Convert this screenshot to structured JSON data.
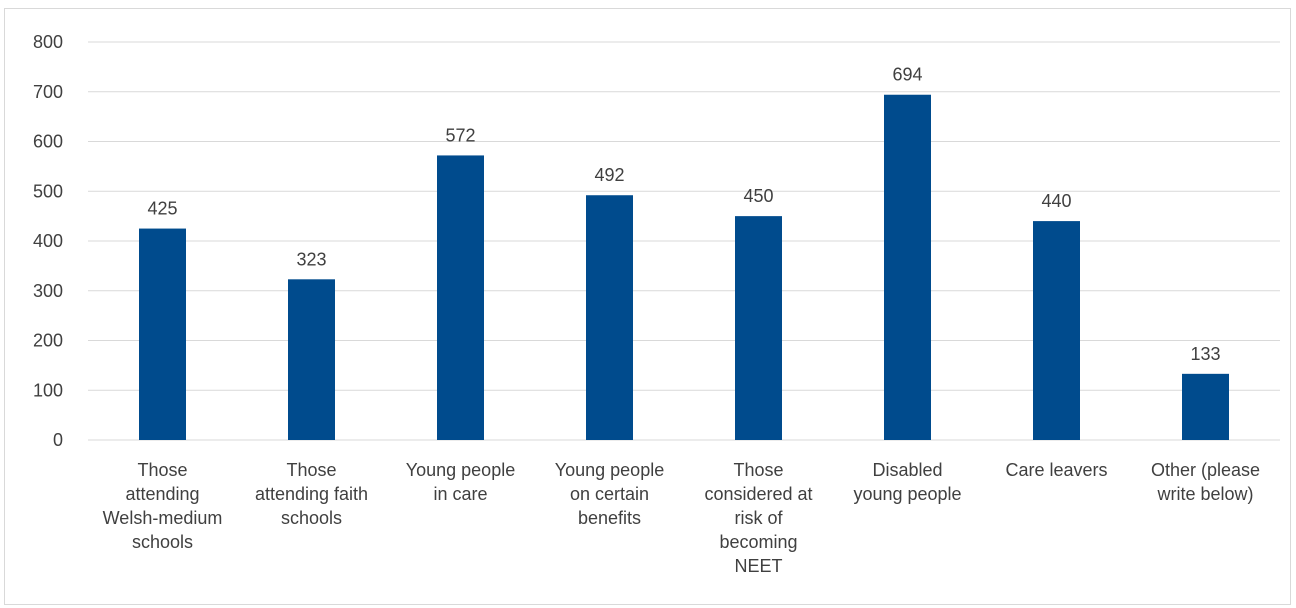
{
  "chart_data": {
    "type": "bar",
    "categories": [
      [
        "Those",
        "attending",
        "Welsh-medium",
        "schools"
      ],
      [
        "Those",
        "attending faith",
        "schools"
      ],
      [
        "Young people",
        "in care"
      ],
      [
        "Young people",
        "on certain",
        "benefits"
      ],
      [
        "Those",
        "considered at",
        "risk of",
        "becoming",
        "NEET"
      ],
      [
        "Disabled",
        "young people"
      ],
      [
        "Care leavers"
      ],
      [
        "Other (please",
        "write below)"
      ]
    ],
    "values": [
      425,
      323,
      572,
      492,
      450,
      694,
      440,
      133
    ],
    "ylim": [
      0,
      800
    ],
    "yticks": [
      0,
      100,
      200,
      300,
      400,
      500,
      600,
      700,
      800
    ],
    "title": "",
    "xlabel": "",
    "ylabel": "",
    "grid": true,
    "legend": "none",
    "bar_color": "#004b8d",
    "grid_color": "#d9d9d9"
  }
}
